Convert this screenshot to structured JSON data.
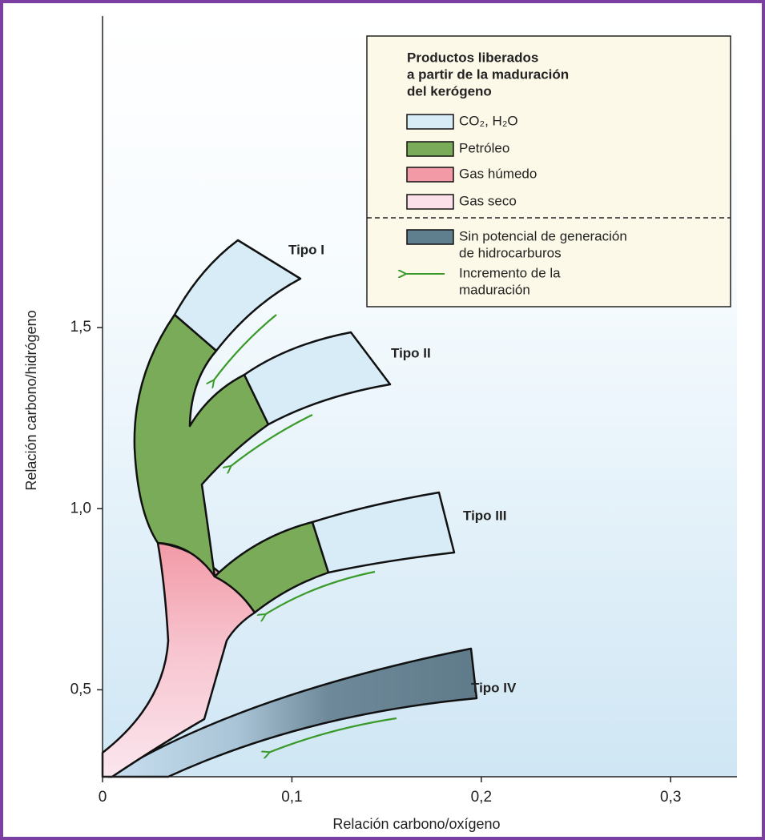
{
  "chart_data": {
    "type": "diagram",
    "xlabel": "Relación carbono/oxígeno",
    "ylabel": "Relación carbono/hidrógeno",
    "xlim": [
      0,
      0.335
    ],
    "ylim": [
      0.26,
      2.36
    ],
    "xticks": [
      0,
      {
        "value": 0.1,
        "label": "0,1"
      },
      {
        "value": 0.2,
        "label": "0,2"
      },
      {
        "value": 0.3,
        "label": "0,3"
      }
    ],
    "yticks": [
      {
        "value": 0.5,
        "label": "0,5"
      },
      {
        "value": 1.0,
        "label": "1,0"
      },
      {
        "value": 1.5,
        "label": "1,5"
      }
    ],
    "annotations": [
      "Tipo I",
      "Tipo II",
      "Tipo III",
      "Tipo IV"
    ],
    "legend": {
      "title": [
        "Productos liberados",
        "a partir de la maduración",
        "del kerógeno"
      ],
      "items": [
        {
          "name": "CO₂, H₂O",
          "color": "#d8ecf8"
        },
        {
          "name": "Petróleo",
          "color": "#7aab58"
        },
        {
          "name": "Gas húmedo",
          "color": "#f29aa6"
        },
        {
          "name": "Gas seco",
          "color": "#fbe0ea"
        },
        {
          "name": [
            "Sin potencial de generación",
            "de hidrocarburos"
          ],
          "color": "#5f7f8f"
        },
        {
          "name": [
            "Incremento de la",
            "maduración"
          ],
          "color": "#3a9a2a"
        }
      ]
    }
  }
}
